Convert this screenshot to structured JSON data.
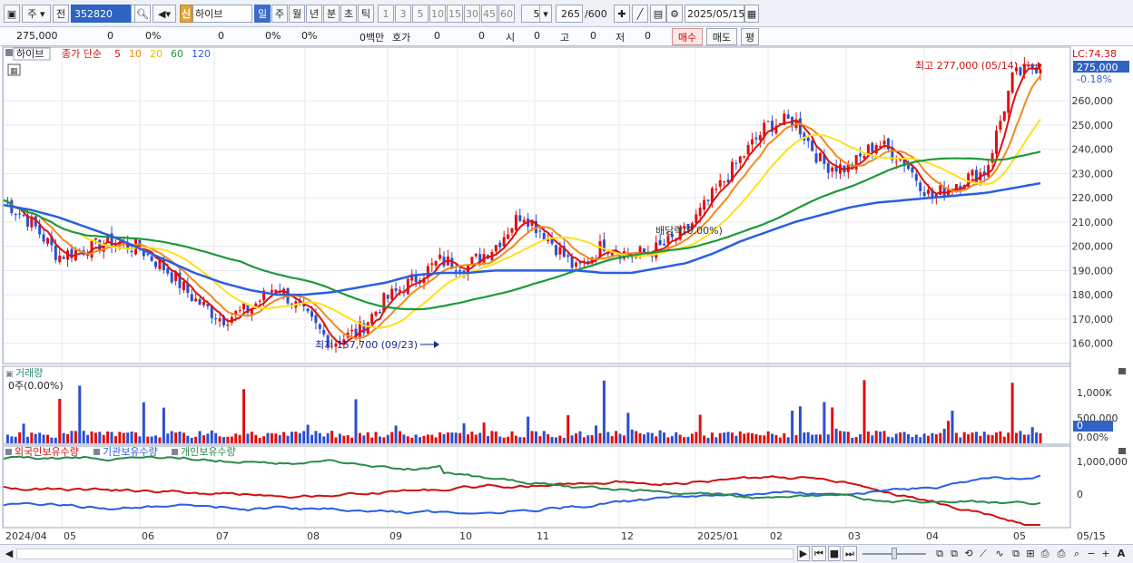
{
  "toolbar": {
    "period_type": "주",
    "view_label": "전",
    "stock_code": "352820",
    "new_badge": "신",
    "stock_name": "하이브",
    "periods": [
      "일",
      "주",
      "월",
      "년",
      "분",
      "초",
      "틱"
    ],
    "selected_period": "일",
    "intervals": [
      "1",
      "3",
      "5",
      "10",
      "15",
      "30",
      "45",
      "60"
    ],
    "interval_value": "5",
    "data_count": "265",
    "data_total": "/600",
    "date": "2025/05/15"
  },
  "quote": {
    "price": "275,000",
    "change": "0",
    "change_rate": "0%",
    "volume": "0",
    "volume_rate": "0%",
    "other_rate": "0%",
    "amount": "0백만",
    "hoga_label": "호가",
    "hoga_value": "0",
    "hoga_value2": "0",
    "open_label": "시",
    "open_value": "0",
    "high_label": "고",
    "high_value": "0",
    "low_label": "저",
    "low_value": "0",
    "buy_label": "매수",
    "sell_label": "매도",
    "avg_label": "평"
  },
  "price_panel": {
    "legend_name": "하이브",
    "legend_ma": "종가 단순",
    "ma_periods": [
      "5",
      "10",
      "20",
      "60",
      "120"
    ],
    "ma_colors": [
      "#e01010",
      "#f08a1e",
      "#ffe01a",
      "#1e9a3a",
      "#2a5fe0"
    ],
    "high_annotation": "최고 277,000 (05/14)",
    "low_annotation": "최저 157,700 (09/23)",
    "dividend_label": "배당락(0.00%)",
    "lc_label": "LC:74.38",
    "current_price_label": "275,000",
    "current_change_label": "-0.18%",
    "y_ticks": [
      "260,000",
      "250,000",
      "240,000",
      "230,000",
      "220,000",
      "210,000",
      "200,000",
      "190,000",
      "180,000",
      "170,000",
      "160,000"
    ]
  },
  "volume_panel": {
    "title": "거래량",
    "current_label": "0주(0.00%)",
    "y_ticks": [
      "1,000K",
      "500,000",
      "0",
      "0.00%"
    ]
  },
  "holdings_panel": {
    "legend": [
      "외국인보유수량",
      "기관보유수량",
      "개인보유수량"
    ],
    "legend_colors": [
      "#d01010",
      "#2a5fe0",
      "#2a8a4a"
    ],
    "y_ticks": [
      "1,000,000",
      "0"
    ]
  },
  "x_axis": [
    "2024/04",
    "05",
    "06",
    "07",
    "08",
    "09",
    "10",
    "11",
    "12",
    "2025/01",
    "02",
    "03",
    "04",
    "05",
    "05/15"
  ],
  "chart_data": {
    "type": "line",
    "title": "",
    "price_ylim": [
      152000,
      281000
    ],
    "months": [
      "2024/04",
      "05",
      "06",
      "07",
      "08",
      "09",
      "10",
      "11",
      "12",
      "2025/01",
      "02",
      "03",
      "04",
      "05"
    ],
    "series": [
      {
        "name": "종가",
        "values": [
          219000,
          210000,
          196000,
          199000,
          202000,
          199000,
          190000,
          178000,
          170000,
          174000,
          184000,
          172000,
          160000,
          165000,
          178000,
          186000,
          194000,
          192000,
          200000,
          214000,
          203000,
          190000,
          201000,
          196000,
          199000,
          206000,
          221000,
          236000,
          250000,
          252000,
          234000,
          232000,
          243000,
          235000,
          220000,
          227000,
          231000,
          270000,
          275000
        ]
      },
      {
        "name": "120",
        "values": [
          217000,
          215000,
          212000,
          208000,
          204000,
          199000,
          194000,
          189000,
          185000,
          182000,
          180000,
          180000,
          181000,
          183000,
          185000,
          188000,
          189000,
          189000,
          190000,
          190000,
          190000,
          190000,
          189000,
          189000,
          191000,
          193000,
          197000,
          202000,
          206000,
          210000,
          213000,
          216000,
          218000,
          219000,
          220000,
          221000,
          222000,
          224000,
          226000
        ]
      }
    ]
  }
}
